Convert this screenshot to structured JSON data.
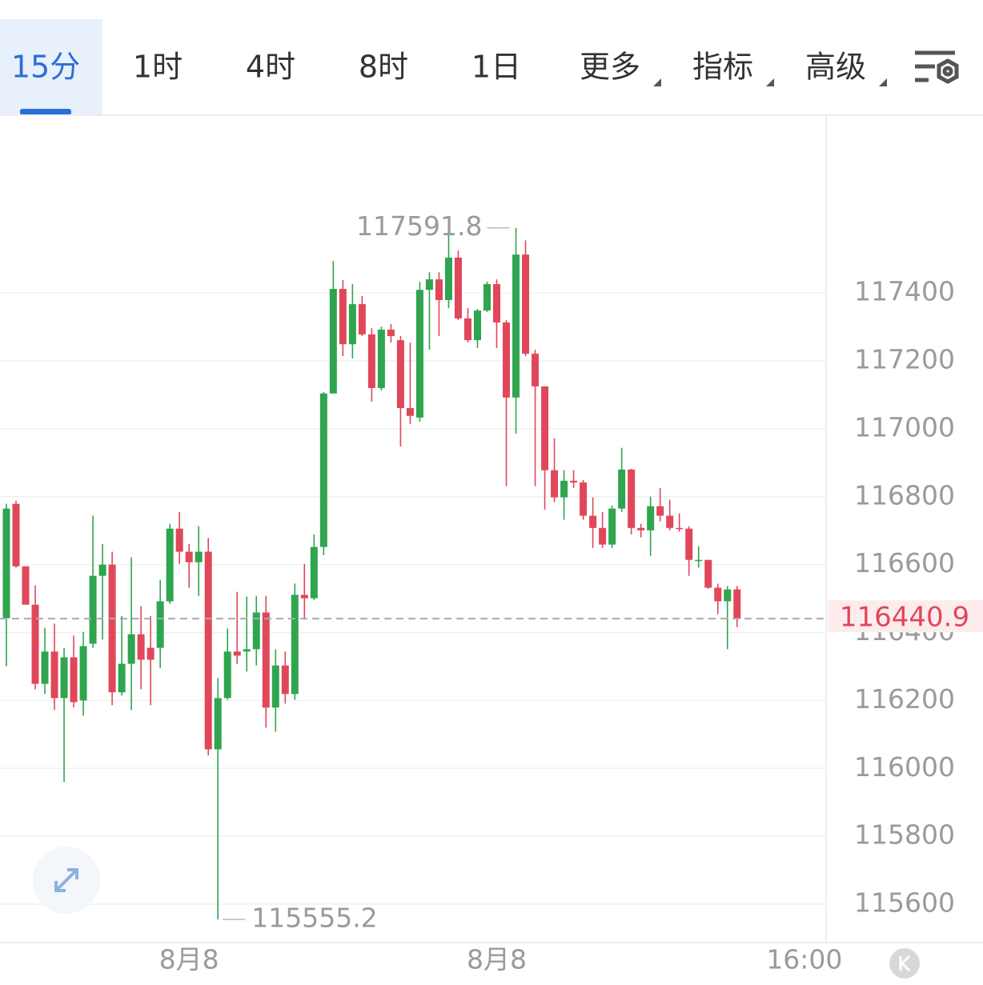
{
  "tabs": [
    {
      "label": "15分",
      "active": true
    },
    {
      "label": "1时"
    },
    {
      "label": "4时"
    },
    {
      "label": "8时"
    },
    {
      "label": "1日"
    },
    {
      "label": "更多",
      "dropdown": true
    },
    {
      "label": "指标",
      "dropdown": true
    },
    {
      "label": "高级",
      "dropdown": true
    }
  ],
  "chart_data": {
    "type": "candlestick",
    "categories": [
      null,
      null,
      null,
      null,
      null,
      null,
      null,
      null,
      null,
      null,
      null,
      null,
      null,
      null,
      null,
      null,
      null,
      null,
      null,
      "8月8",
      null,
      null,
      null,
      null,
      null,
      null,
      null,
      null,
      null,
      null,
      null,
      null,
      null,
      null,
      null,
      null,
      null,
      null,
      null,
      null,
      null,
      null,
      null,
      null,
      null,
      null,
      null,
      null,
      null,
      null,
      null,
      "8月8",
      null,
      null,
      null,
      null,
      null,
      null,
      null,
      null,
      null,
      null,
      null,
      null,
      null,
      null,
      null,
      null,
      null,
      null,
      null,
      null,
      null,
      null,
      null,
      null,
      null,
      null,
      null,
      null,
      null,
      null,
      null,
      "16:00"
    ],
    "open": [
      116442,
      116779,
      116595,
      116482,
      116249,
      116344,
      116207,
      116327,
      116200,
      116367,
      116567,
      116600,
      116224,
      116308,
      116395,
      116355,
      116355,
      116492,
      116706,
      116638,
      116607,
      116638,
      116056,
      116207,
      116344,
      116344,
      116351,
      116459,
      116179,
      116303,
      116219,
      116511,
      116501,
      116652,
      117104,
      117412,
      117249,
      117367,
      117278,
      117120,
      117292,
      117261,
      117061,
      117033,
      117409,
      117440,
      117379,
      117504,
      117325,
      117261,
      117348,
      117426,
      117313,
      117092,
      117513,
      117221,
      117125,
      116878,
      116798,
      116847,
      116842,
      116744,
      116708,
      116659,
      116765,
      116880,
      116708,
      116701,
      116772,
      116744,
      116708,
      116706,
      116612,
      116614,
      116532,
      116492,
      116527,
      null,
      null,
      null,
      null,
      null,
      null,
      null
    ],
    "high": [
      116779,
      116788,
      116595,
      116539,
      116414,
      116426,
      116355,
      116391,
      116402,
      116744,
      116661,
      116638,
      116449,
      116621,
      116478,
      116449,
      116555,
      116720,
      116755,
      116661,
      116713,
      116678,
      116266,
      116412,
      116520,
      116506,
      116508,
      116508,
      116351,
      116344,
      116544,
      116602,
      116689,
      117108,
      117494,
      117438,
      117426,
      117391,
      117296,
      117301,
      117308,
      117273,
      117254,
      117433,
      117461,
      117461,
      117585,
      117525,
      117355,
      117353,
      117433,
      117440,
      117320,
      117591.8,
      117555,
      117233,
      117125,
      116972,
      116878,
      116878,
      116849,
      116798,
      116755,
      116774,
      116944,
      116882,
      116720,
      116800,
      116826,
      116791,
      116751,
      116713,
      116654,
      116614,
      116544,
      116537,
      116537,
      null,
      null,
      null,
      null,
      null,
      null,
      null
    ],
    "low": [
      116301,
      116591,
      116482,
      116233,
      116219,
      116172,
      115960,
      116179,
      116155,
      116355,
      116379,
      116186,
      116214,
      116172,
      116233,
      116186,
      116296,
      116485,
      116602,
      116532,
      116508,
      116038,
      115555.2,
      116202,
      116308,
      116285,
      116303,
      116120,
      116108,
      116191,
      116202,
      116438,
      116496,
      116628,
      117104,
      117214,
      117207,
      117273,
      117080,
      117113,
      117254,
      116948,
      117014,
      117021,
      117233,
      117273,
      117355,
      117320,
      117254,
      117238,
      117344,
      117238,
      116831,
      116986,
      117214,
      116831,
      116762,
      116784,
      116732,
      116826,
      116732,
      116649,
      116649,
      116649,
      116755,
      116689,
      116680,
      116626,
      116727,
      116701,
      116697,
      116567,
      116591,
      116529,
      116454,
      116351,
      116416,
      null,
      null,
      null,
      null,
      null,
      null,
      null
    ],
    "close": [
      116765,
      116595,
      116482,
      116249,
      116344,
      116207,
      116327,
      116195,
      116360,
      116567,
      116600,
      116224,
      116308,
      116395,
      116320,
      116320,
      116492,
      116706,
      116638,
      116607,
      116638,
      116056,
      116207,
      116344,
      116332,
      116351,
      116459,
      116179,
      116303,
      116219,
      116511,
      116501,
      116652,
      117104,
      117412,
      117249,
      117367,
      117278,
      117120,
      117292,
      117273,
      117061,
      117038,
      117409,
      117440,
      117379,
      117504,
      117325,
      117261,
      117348,
      117426,
      117313,
      117092,
      117513,
      117221,
      117125,
      116878,
      116798,
      116847,
      116842,
      116744,
      116708,
      116659,
      116765,
      116880,
      116708,
      116701,
      116772,
      116744,
      116708,
      116706,
      116614,
      116614,
      116532,
      116492,
      116527,
      116440.9,
      null,
      null,
      null,
      null,
      null,
      null,
      null
    ],
    "up_color": "#2fa54f",
    "down_color": "#e0475a",
    "ylim": [
      115487,
      117921
    ],
    "yticks": [
      115600,
      115800,
      116000,
      116200,
      116400,
      116600,
      116800,
      117000,
      117200,
      117400
    ],
    "grid": true
  }
}
